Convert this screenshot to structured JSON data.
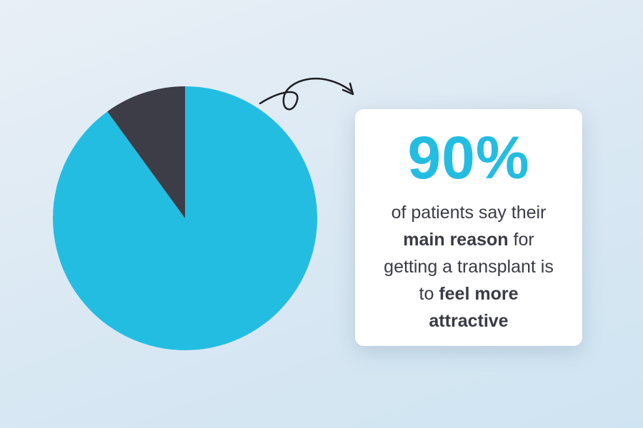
{
  "chart_data": {
    "type": "pie",
    "values": [
      90,
      10
    ],
    "value_labels": [
      "90%",
      null
    ],
    "colors": [
      "#24bde2",
      "#3c3d47"
    ],
    "description": [
      "of patients say their",
      "main reason",
      "for",
      "getting a transplant is",
      "to",
      "feel more",
      "attractive"
    ]
  }
}
